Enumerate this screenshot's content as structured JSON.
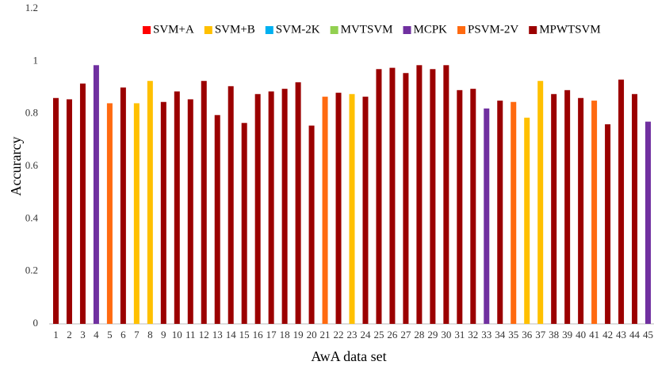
{
  "chart_data": {
    "type": "bar",
    "xlabel": "AwA data set",
    "ylabel": "Accurarcy",
    "categories": [
      "1",
      "2",
      "3",
      "4",
      "5",
      "6",
      "7",
      "8",
      "9",
      "10",
      "11",
      "12",
      "13",
      "14",
      "15",
      "16",
      "17",
      "18",
      "19",
      "20",
      "21",
      "22",
      "23",
      "24",
      "25",
      "26",
      "27",
      "28",
      "29",
      "30",
      "31",
      "32",
      "33",
      "34",
      "35",
      "36",
      "37",
      "38",
      "39",
      "40",
      "41",
      "42",
      "43",
      "44",
      "45"
    ],
    "series": [
      {
        "name": "SVM+A",
        "color": "#ff0000",
        "values": [
          null,
          null,
          null,
          null,
          null,
          null,
          null,
          null,
          null,
          null,
          null,
          null,
          null,
          null,
          null,
          null,
          null,
          null,
          null,
          null,
          null,
          null,
          null,
          null,
          null,
          null,
          null,
          null,
          null,
          null,
          null,
          null,
          null,
          null,
          null,
          null,
          null,
          null,
          null,
          null,
          null,
          null,
          null,
          null,
          null
        ]
      },
      {
        "name": "SVM+B",
        "color": "#ffc000",
        "values": [
          null,
          null,
          null,
          null,
          null,
          null,
          0.84,
          0.925,
          null,
          null,
          null,
          null,
          null,
          null,
          null,
          null,
          null,
          null,
          null,
          null,
          null,
          null,
          0.875,
          null,
          null,
          null,
          null,
          null,
          null,
          null,
          null,
          null,
          null,
          null,
          null,
          0.785,
          0.925,
          null,
          null,
          null,
          null,
          null,
          null,
          null,
          null
        ]
      },
      {
        "name": "SVM-2K",
        "color": "#00b0f0",
        "values": [
          null,
          null,
          null,
          null,
          null,
          null,
          null,
          null,
          null,
          null,
          null,
          null,
          null,
          null,
          null,
          null,
          null,
          null,
          null,
          null,
          null,
          null,
          null,
          null,
          null,
          null,
          null,
          null,
          null,
          null,
          null,
          null,
          null,
          null,
          null,
          null,
          null,
          null,
          null,
          null,
          null,
          null,
          null,
          null,
          null
        ]
      },
      {
        "name": "MVTSVM",
        "color": "#92d050",
        "values": [
          null,
          null,
          null,
          null,
          null,
          null,
          null,
          null,
          null,
          null,
          null,
          null,
          null,
          null,
          null,
          null,
          null,
          null,
          null,
          null,
          null,
          null,
          null,
          null,
          null,
          null,
          null,
          null,
          null,
          null,
          null,
          null,
          null,
          null,
          null,
          null,
          null,
          null,
          null,
          null,
          null,
          null,
          null,
          null,
          null
        ]
      },
      {
        "name": "MCPK",
        "color": "#7030a0",
        "values": [
          null,
          null,
          null,
          0.985,
          null,
          null,
          null,
          null,
          null,
          null,
          null,
          null,
          null,
          null,
          null,
          null,
          null,
          null,
          null,
          null,
          null,
          null,
          null,
          null,
          null,
          null,
          null,
          null,
          null,
          null,
          null,
          null,
          0.82,
          null,
          null,
          null,
          null,
          null,
          null,
          null,
          null,
          null,
          null,
          null,
          0.77
        ]
      },
      {
        "name": "PSVM-2V",
        "color": "#ff6a10",
        "values": [
          null,
          null,
          null,
          null,
          0.84,
          null,
          null,
          null,
          null,
          null,
          null,
          null,
          null,
          null,
          null,
          null,
          null,
          null,
          null,
          null,
          0.865,
          null,
          null,
          null,
          null,
          null,
          null,
          null,
          null,
          null,
          null,
          null,
          null,
          null,
          0.845,
          null,
          null,
          null,
          null,
          null,
          0.85,
          null,
          null,
          null,
          null
        ]
      },
      {
        "name": "MPWTSVM",
        "color": "#9b0000",
        "values": [
          0.86,
          0.855,
          0.915,
          null,
          null,
          0.9,
          null,
          null,
          0.845,
          0.885,
          0.855,
          0.925,
          0.795,
          0.905,
          0.765,
          0.875,
          0.885,
          0.895,
          0.92,
          0.755,
          null,
          0.88,
          null,
          0.865,
          0.97,
          0.975,
          0.955,
          0.985,
          0.97,
          0.985,
          0.89,
          0.895,
          null,
          0.85,
          null,
          null,
          null,
          0.875,
          0.89,
          0.86,
          null,
          0.76,
          0.93,
          0.875,
          null
        ]
      }
    ],
    "ylim": [
      0,
      1.2
    ],
    "yticks": [
      0,
      0.2,
      0.4,
      0.6,
      0.8,
      1,
      1.2
    ],
    "grid": false,
    "legend": "top-right"
  }
}
